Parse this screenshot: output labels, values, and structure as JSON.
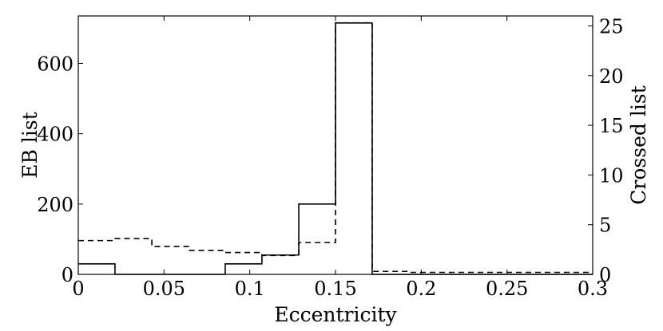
{
  "chart_data": {
    "type": "histogram",
    "xlabel": "Eccentricity",
    "ylabel_left": "EB list",
    "ylabel_right": "Crossed list",
    "xlim": [
      0,
      0.3
    ],
    "ylim_left": [
      0,
      735
    ],
    "ylim_right": [
      0,
      26
    ],
    "x_ticks": [
      "0",
      "0.05",
      "0.1",
      "0.15",
      "0.2",
      "0.25",
      "0.3"
    ],
    "y_ticks_left": [
      "0",
      "200",
      "400",
      "600"
    ],
    "y_ticks_right": [
      "0",
      "5",
      "10",
      "15",
      "20",
      "25"
    ],
    "grid": false,
    "bin_edges": [
      0,
      0.0214,
      0.0429,
      0.0643,
      0.0857,
      0.1071,
      0.1286,
      0.15,
      0.1714,
      0.1929,
      0.2143,
      0.2357,
      0.2571,
      0.2786,
      0.3
    ],
    "series": [
      {
        "axis": "left",
        "style": "solid",
        "values": [
          30,
          0,
          0,
          0,
          30,
          55,
          200,
          715,
          0,
          0,
          0,
          0,
          0,
          0
        ]
      },
      {
        "axis": "right",
        "style": "dashed",
        "values": [
          3.4,
          3.6,
          2.8,
          2.4,
          2.2,
          1.9,
          3.2,
          25.3,
          0.3,
          0.2,
          0.2,
          0.2,
          0.2,
          0.2
        ]
      }
    ]
  }
}
